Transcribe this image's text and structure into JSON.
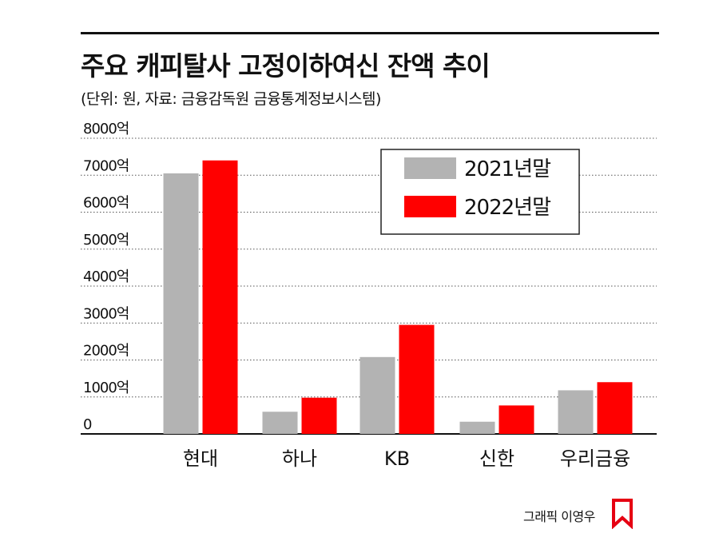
{
  "header": {
    "title": "주요 캐피탈사 고정이하여신 잔액 추이",
    "subtitle": "(단위: 원, 자료: 금융감독원 금융통계정보시스템)"
  },
  "credit": "그래픽 이영우",
  "colors": {
    "series_2021": "#b3b3b3",
    "series_2022": "#ff0000",
    "logo": "#e60012"
  },
  "chart_data": {
    "type": "bar",
    "categories": [
      "현대",
      "하나",
      "KB",
      "신한",
      "우리금융"
    ],
    "series": [
      {
        "name": "2021년말",
        "values": [
          7050,
          600,
          2080,
          330,
          1180
        ]
      },
      {
        "name": "2022년말",
        "values": [
          7400,
          980,
          2950,
          770,
          1400
        ]
      }
    ],
    "y_ticks": [
      {
        "value": 0,
        "label": "0"
      },
      {
        "value": 1000,
        "label": "1000억"
      },
      {
        "value": 2000,
        "label": "2000억"
      },
      {
        "value": 3000,
        "label": "3000억"
      },
      {
        "value": 4000,
        "label": "4000억"
      },
      {
        "value": 5000,
        "label": "5000억"
      },
      {
        "value": 6000,
        "label": "6000억"
      },
      {
        "value": 7000,
        "label": "7000억"
      },
      {
        "value": 8000,
        "label": "8000억"
      }
    ],
    "ylim": [
      0,
      8000
    ],
    "grid": true,
    "legend_position": "top-right"
  }
}
